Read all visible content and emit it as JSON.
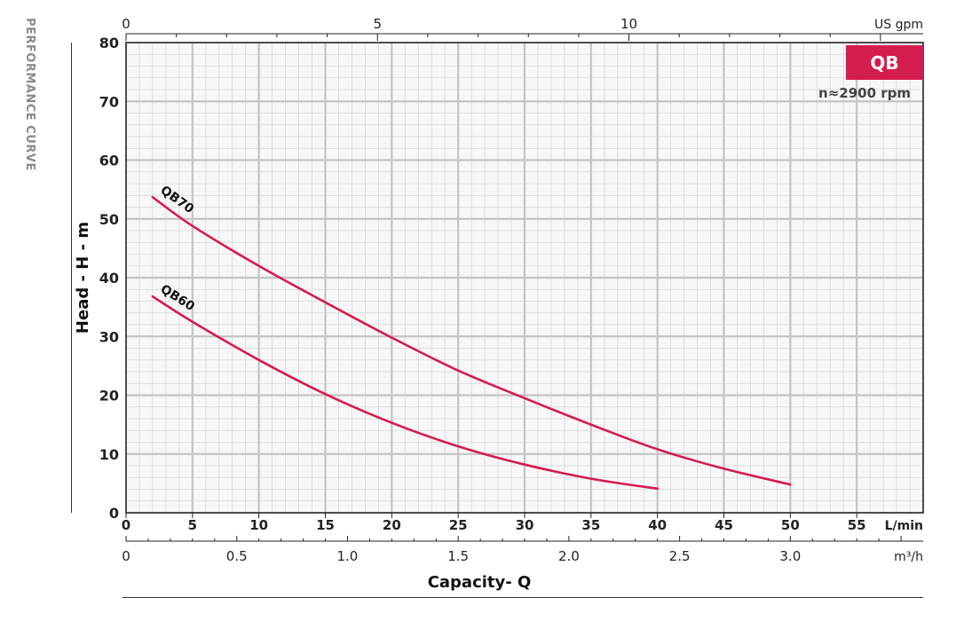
{
  "chart_data": {
    "type": "line",
    "side_label": "PERFORMANCE CURVE",
    "badge": "QB",
    "subtitle": "n≈2900 rpm",
    "ylabel": "Head - H - m",
    "xlabel": "Capacity- Q",
    "ylim": [
      0,
      80
    ],
    "y_ticks": [
      0,
      10,
      20,
      30,
      40,
      50,
      60,
      70,
      80
    ],
    "x_axis_lmin": {
      "unit": "L/min",
      "range": [
        0,
        60
      ],
      "ticks": [
        0,
        5,
        10,
        15,
        20,
        25,
        30,
        35,
        40,
        45,
        50,
        55
      ],
      "labels": [
        "0",
        "5",
        "10",
        "15",
        "20",
        "25",
        "30",
        "35",
        "40",
        "45",
        "50",
        "55"
      ]
    },
    "x_axis_m3h": {
      "unit": "m³/h",
      "range": [
        0,
        3.6
      ],
      "ticks": [
        0,
        0.5,
        1.0,
        1.5,
        2.0,
        2.5,
        3.0
      ],
      "labels": [
        "0",
        "0.5",
        "1.0",
        "1.5",
        "2.0",
        "2.5",
        "3.0"
      ]
    },
    "x_axis_gpm": {
      "unit": "US gpm",
      "range": [
        0,
        15.85
      ],
      "ticks": [
        0,
        5,
        10
      ],
      "labels": [
        "0",
        "5",
        "10"
      ]
    },
    "grid": true,
    "series": [
      {
        "name": "QB70",
        "color": "#d51c4f",
        "x": [
          2,
          5,
          10,
          15,
          20,
          25,
          30,
          35,
          40,
          45,
          50
        ],
        "y": [
          53.7,
          48.8,
          42.0,
          35.8,
          29.8,
          24.2,
          19.5,
          15.0,
          10.8,
          7.5,
          4.8
        ]
      },
      {
        "name": "QB60",
        "color": "#d51c4f",
        "x": [
          2,
          5,
          10,
          15,
          20,
          25,
          30,
          35,
          40
        ],
        "y": [
          36.8,
          32.5,
          26.0,
          20.2,
          15.3,
          11.3,
          8.2,
          5.8,
          4.1
        ]
      }
    ]
  }
}
